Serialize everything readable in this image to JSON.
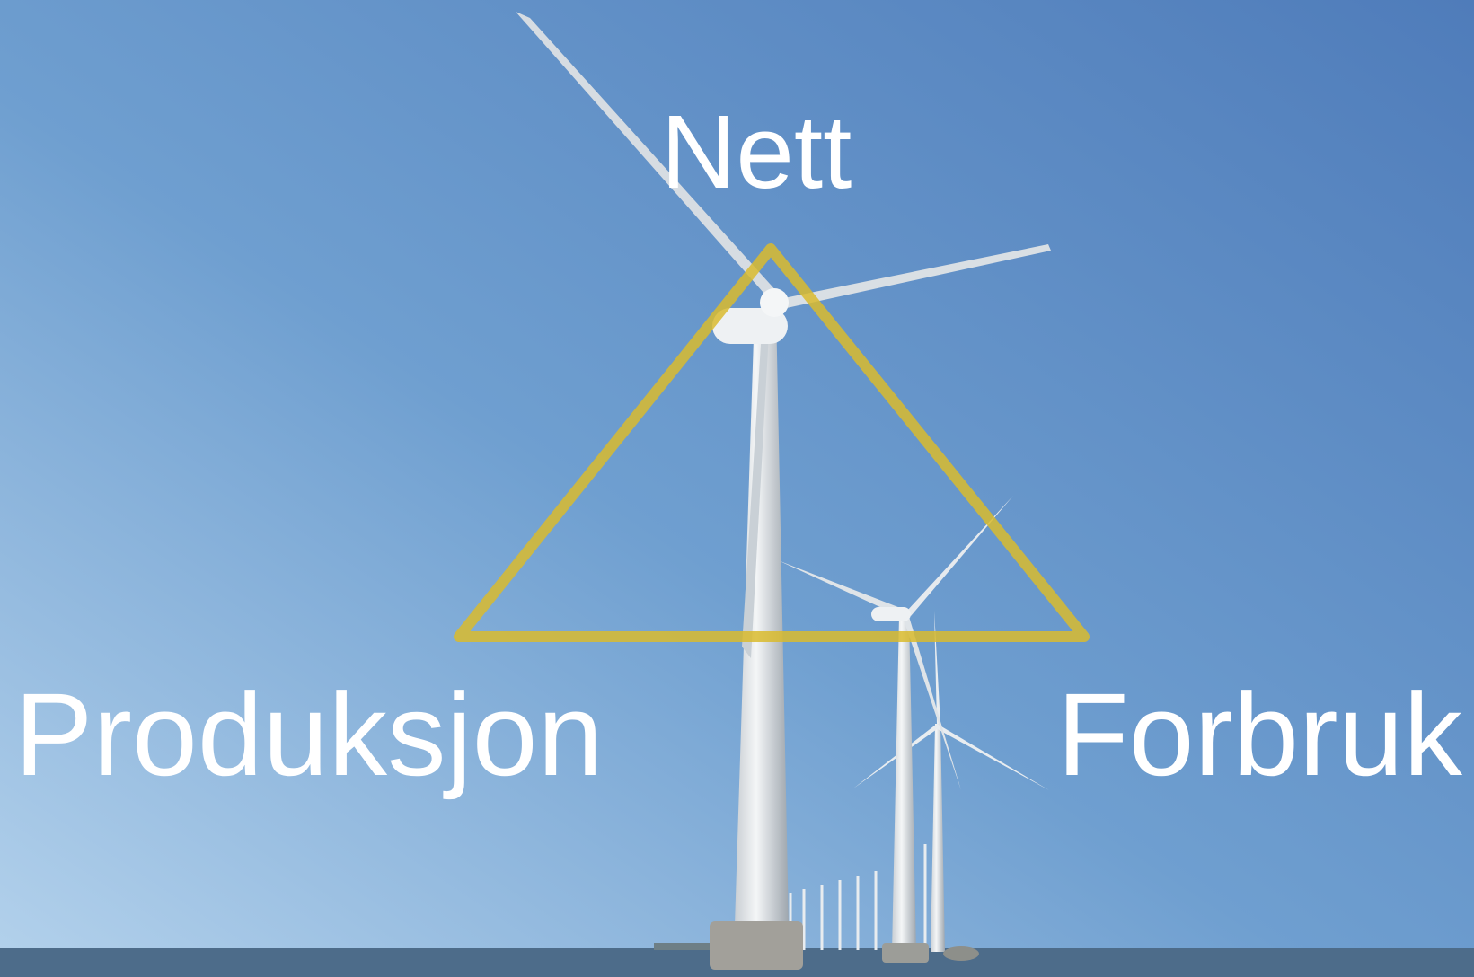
{
  "labels": {
    "top": "Nett",
    "left": "Produksjon",
    "right": "Forbruk"
  }
}
